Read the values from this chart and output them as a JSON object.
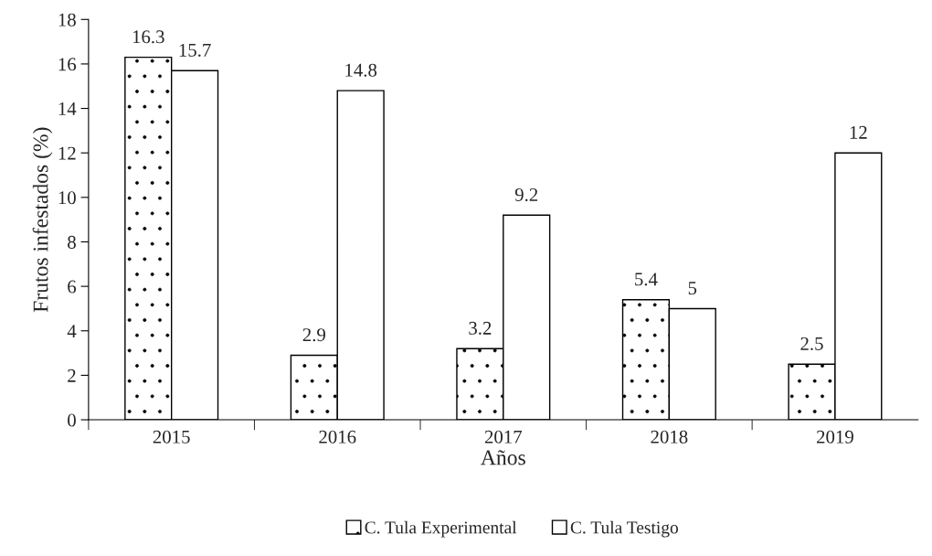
{
  "chart_data": {
    "type": "bar",
    "xlabel": "Años",
    "ylabel": "Frutos infestados (%)",
    "categories": [
      "2015",
      "2016",
      "2017",
      "2018",
      "2019"
    ],
    "series": [
      {
        "name": "C. Tula Experimental",
        "color": "#ffffff",
        "values": [
          16.3,
          2.9,
          3.2,
          5.4,
          2.5
        ]
      },
      {
        "name": "C. Tula Testigo",
        "color": "#ffffff",
        "values": [
          15.7,
          14.8,
          9.2,
          5,
          12
        ]
      }
    ],
    "ylim": [
      0,
      18
    ],
    "yticks": [
      0,
      2,
      4,
      6,
      8,
      10,
      12,
      14,
      16,
      18
    ],
    "data_labels": true,
    "grid": false,
    "legend": "bottom"
  }
}
